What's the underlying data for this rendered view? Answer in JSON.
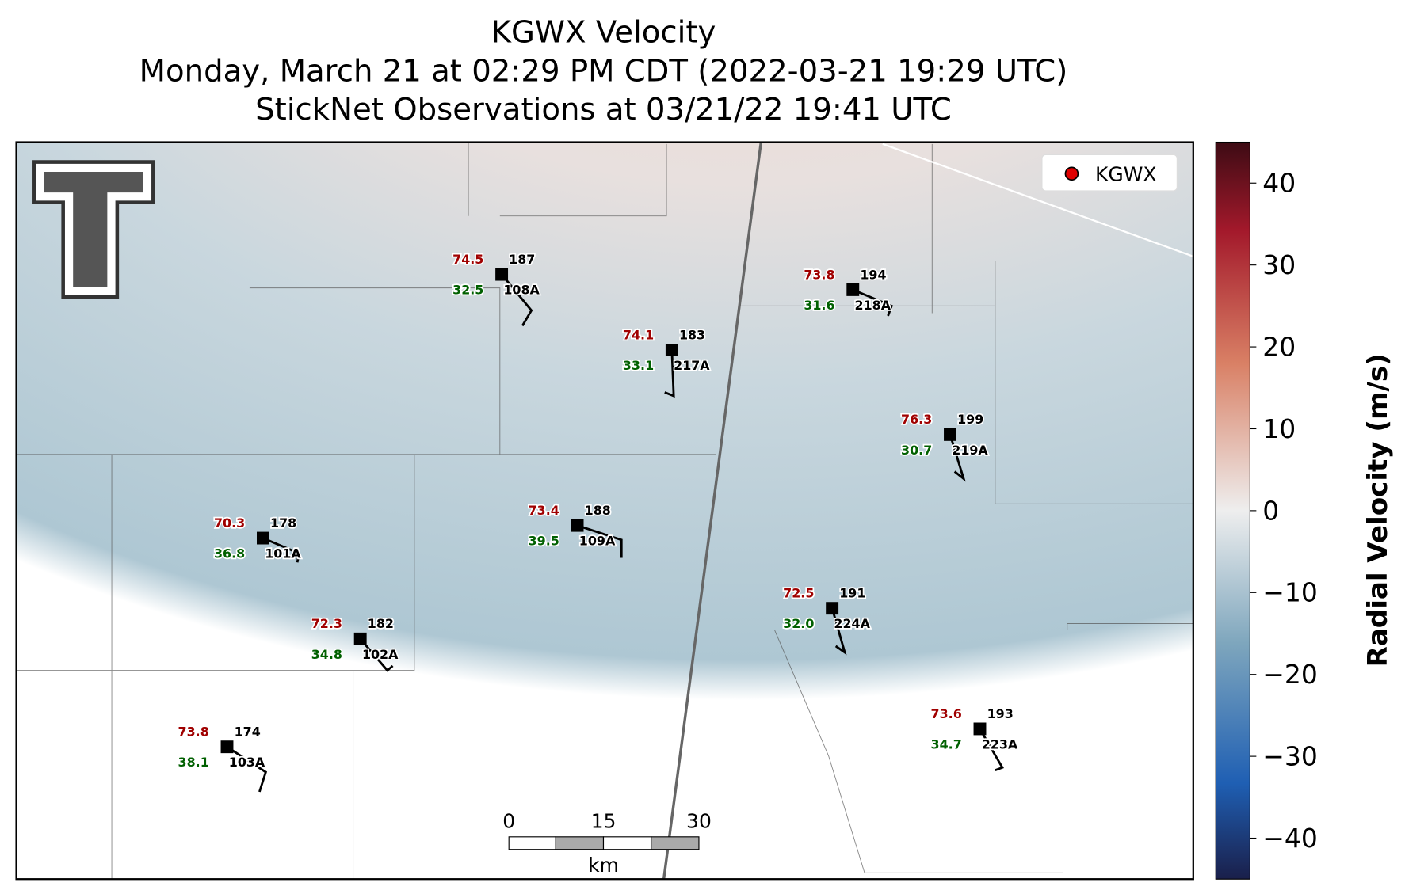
{
  "header": {
    "title": "KGWX Velocity",
    "subtitle": "Monday, March 21 at 02:29 PM CDT (2022-03-21 19:29 UTC)",
    "observations": "StickNet Observations at 03/21/22 19:41 UTC"
  },
  "legend": {
    "label": "KGWX",
    "color": "#e00000"
  },
  "colorbar": {
    "label": "Radial Velocity (m/s)",
    "lim": [
      -45,
      45
    ],
    "ticks": [
      {
        "value": -40,
        "label": "−40"
      },
      {
        "value": -30,
        "label": "−30"
      },
      {
        "value": -20,
        "label": "−20"
      },
      {
        "value": -10,
        "label": "−10"
      },
      0,
      10,
      20,
      30,
      40
    ]
  },
  "scale_bar": {
    "ticks": [
      "0",
      "15",
      "30"
    ],
    "unit": "km"
  },
  "stations": [
    {
      "id": "108A",
      "temperature": "74.5",
      "dewpoint": "32.5",
      "number": "187"
    },
    {
      "id": "217A",
      "temperature": "74.1",
      "dewpoint": "33.1",
      "number": "183"
    },
    {
      "id": "218A",
      "temperature": "73.8",
      "dewpoint": "31.6",
      "number": "194"
    },
    {
      "id": "219A",
      "temperature": "76.3",
      "dewpoint": "30.7",
      "number": "199"
    },
    {
      "id": "101A",
      "temperature": "70.3",
      "dewpoint": "36.8",
      "number": "178"
    },
    {
      "id": "109A",
      "temperature": "73.4",
      "dewpoint": "39.5",
      "number": "188"
    },
    {
      "id": "224A",
      "temperature": "72.5",
      "dewpoint": "32.0",
      "number": "191"
    },
    {
      "id": "102A",
      "temperature": "72.3",
      "dewpoint": "34.8",
      "number": "182"
    },
    {
      "id": "103A",
      "temperature": "73.8",
      "dewpoint": "38.1",
      "number": "174"
    },
    {
      "id": "223A",
      "temperature": "73.6",
      "dewpoint": "34.7",
      "number": "193"
    }
  ]
}
